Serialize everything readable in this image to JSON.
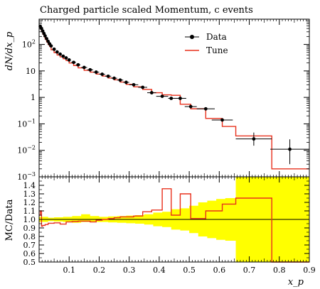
{
  "chart_data": [
    {
      "type": "line",
      "title": "Charged particle scaled Momentum, c events",
      "ylabel": "dN/dx_p",
      "yscale": "log",
      "ylim": [
        0.001,
        900
      ],
      "xlim": [
        0,
        0.9
      ],
      "ytick_labels": [
        "10^-3",
        "10^-2",
        "10^-1",
        "1",
        "10",
        "10^2"
      ],
      "legend": {
        "position": "top-right",
        "entries": [
          "Data",
          "Tune"
        ]
      },
      "series": [
        {
          "name": "Data",
          "style": "points-with-errors",
          "color": "#000000",
          "x": [
            0.004,
            0.008,
            0.012,
            0.016,
            0.02,
            0.025,
            0.03,
            0.035,
            0.04,
            0.05,
            0.06,
            0.07,
            0.08,
            0.09,
            0.1,
            0.115,
            0.13,
            0.15,
            0.17,
            0.19,
            0.21,
            0.23,
            0.25,
            0.27,
            0.29,
            0.315,
            0.345,
            0.375,
            0.41,
            0.44,
            0.47,
            0.505,
            0.555,
            0.61,
            0.715,
            0.835
          ],
          "y": [
            480,
            400,
            320,
            260,
            210,
            165,
            130,
            105,
            88,
            66,
            52,
            43,
            36,
            31,
            26,
            21,
            17,
            13.5,
            11,
            9,
            7.5,
            6.3,
            5.3,
            4.5,
            3.7,
            3.0,
            2.4,
            1.5,
            1.1,
            0.92,
            0.92,
            0.45,
            0.37,
            0.14,
            0.027,
            0.011
          ],
          "xerr": [
            0.002,
            0.002,
            0.002,
            0.002,
            0.002,
            0.0025,
            0.0025,
            0.0025,
            0.0025,
            0.005,
            0.005,
            0.005,
            0.005,
            0.005,
            0.005,
            0.0075,
            0.0075,
            0.01,
            0.01,
            0.01,
            0.01,
            0.01,
            0.01,
            0.01,
            0.01,
            0.015,
            0.015,
            0.015,
            0.02,
            0.01,
            0.02,
            0.02,
            0.03,
            0.035,
            0.06,
            0.065
          ],
          "yerr_lo": [
            20,
            15,
            12,
            10,
            8,
            6,
            5,
            4,
            3,
            2,
            1.5,
            1.2,
            1,
            0.8,
            0.6,
            0.5,
            0.4,
            0.3,
            0.25,
            0.2,
            0.15,
            0.12,
            0.1,
            0.09,
            0.08,
            0.07,
            0.06,
            0.04,
            0.03,
            0.03,
            0.03,
            0.02,
            0.02,
            0.015,
            0.012,
            0.008
          ],
          "yerr_hi": [
            20,
            15,
            12,
            10,
            8,
            6,
            5,
            4,
            3,
            2,
            1.5,
            1.2,
            1,
            0.8,
            0.6,
            0.5,
            0.4,
            0.3,
            0.25,
            0.2,
            0.15,
            0.12,
            0.1,
            0.09,
            0.08,
            0.07,
            0.06,
            0.04,
            0.03,
            0.03,
            0.03,
            0.02,
            0.02,
            0.015,
            0.02,
            0.015
          ]
        },
        {
          "name": "Tune",
          "style": "step",
          "color": "#e8301c",
          "edges": [
            0.0,
            0.004,
            0.008,
            0.012,
            0.016,
            0.02,
            0.025,
            0.03,
            0.035,
            0.04,
            0.05,
            0.06,
            0.07,
            0.08,
            0.09,
            0.1,
            0.115,
            0.13,
            0.15,
            0.17,
            0.19,
            0.21,
            0.23,
            0.25,
            0.27,
            0.29,
            0.315,
            0.345,
            0.375,
            0.41,
            0.44,
            0.47,
            0.505,
            0.555,
            0.61,
            0.655,
            0.775,
            0.9
          ],
          "values": [
            520,
            420,
            315,
            245,
            200,
            160,
            125,
            100,
            84,
            63,
            49,
            40,
            34,
            29,
            24.5,
            20,
            16,
            13,
            10.5,
            9,
            7.6,
            6.4,
            5.4,
            4.6,
            3.8,
            3.1,
            2.5,
            2.0,
            1.5,
            1.25,
            1.2,
            0.55,
            0.37,
            0.16,
            0.08,
            0.035,
            0.002
          ]
        }
      ]
    },
    {
      "type": "area",
      "ylabel": "MC/Data",
      "xlabel": "x_p",
      "ylim": [
        0.5,
        1.5
      ],
      "xlim": [
        0,
        0.9
      ],
      "yticks": [
        0.5,
        0.6,
        0.7,
        0.8,
        0.9,
        1.0,
        1.1,
        1.2,
        1.3,
        1.4
      ],
      "ytick_labels": [
        "0.5",
        "0.6",
        "0.7",
        "0.8",
        "0.9",
        "1.0",
        "1.1",
        "1.2",
        "1.3",
        "1.4"
      ],
      "xticks": [
        0.1,
        0.2,
        0.3,
        0.4,
        0.5,
        0.6,
        0.7,
        0.8,
        0.9
      ],
      "xtick_labels": [
        "0.1",
        "0.2",
        "0.3",
        "0.4",
        "0.5",
        "0.6",
        "0.7",
        "0.8",
        "0.9"
      ],
      "reference_line": 1.0,
      "band": {
        "color": "#ffff00",
        "edges": [
          0.0,
          0.01,
          0.03,
          0.05,
          0.08,
          0.11,
          0.14,
          0.17,
          0.2,
          0.23,
          0.26,
          0.29,
          0.32,
          0.35,
          0.38,
          0.41,
          0.44,
          0.47,
          0.5,
          0.53,
          0.56,
          0.59,
          0.62,
          0.655,
          0.775,
          0.9
        ],
        "lo": [
          0.97,
          0.97,
          0.98,
          0.975,
          0.97,
          0.96,
          0.97,
          0.97,
          0.97,
          0.965,
          0.96,
          0.955,
          0.95,
          0.94,
          0.92,
          0.91,
          0.88,
          0.87,
          0.84,
          0.8,
          0.78,
          0.76,
          0.75,
          0.5,
          0.5
        ],
        "hi": [
          1.03,
          1.03,
          1.02,
          1.025,
          1.03,
          1.04,
          1.06,
          1.04,
          1.03,
          1.035,
          1.04,
          1.045,
          1.05,
          1.06,
          1.08,
          1.09,
          1.12,
          1.13,
          1.16,
          1.2,
          1.22,
          1.24,
          1.25,
          1.5,
          1.5
        ]
      },
      "ratio": {
        "color": "#e8301c",
        "edges": [
          0.0,
          0.004,
          0.008,
          0.012,
          0.02,
          0.03,
          0.05,
          0.07,
          0.09,
          0.11,
          0.13,
          0.15,
          0.17,
          0.19,
          0.21,
          0.23,
          0.25,
          0.27,
          0.29,
          0.315,
          0.345,
          0.375,
          0.41,
          0.44,
          0.47,
          0.505,
          0.555,
          0.61,
          0.655,
          0.775,
          0.9
        ],
        "values": [
          1.05,
          1.1,
          0.92,
          0.93,
          0.94,
          0.955,
          0.96,
          0.945,
          0.97,
          0.975,
          0.98,
          0.98,
          0.97,
          0.99,
          1.0,
          1.01,
          1.02,
          1.03,
          1.03,
          1.04,
          1.09,
          1.11,
          1.36,
          1.05,
          1.3,
          1.01,
          1.1,
          1.18,
          1.25,
          0.5
        ]
      }
    }
  ]
}
